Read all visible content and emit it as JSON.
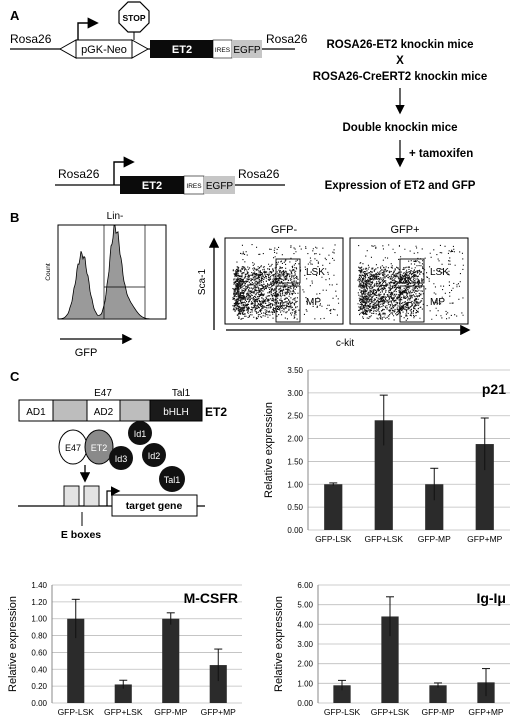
{
  "panelA": {
    "letter": "A",
    "construct1": {
      "rosa_left": "Rosa26",
      "neo": "pGK-Neo",
      "stop": "STOP",
      "et2": "ET2",
      "ires": "IRES",
      "egfp": "EGFP",
      "rosa_right": "Rosa26"
    },
    "construct2": {
      "rosa_left": "Rosa26",
      "et2": "ET2",
      "ires": "IRES",
      "egfp": "EGFP",
      "rosa_right": "Rosa26"
    },
    "flow": {
      "line1": "ROSA26-ET2 knockin mice",
      "cross": "X",
      "line2": "ROSA26-CreERT2 knockin mice",
      "line3": "Double knockin mice",
      "treatment": "+ tamoxifen",
      "line4": "Expression of ET2 and GFP"
    }
  },
  "panelB": {
    "letter": "B",
    "histogram": {
      "title": "Lin-",
      "xlabel": "GFP",
      "ylabel": "Count"
    },
    "scatter_neg": {
      "title": "GFP-"
    },
    "scatter_pos": {
      "title": "GFP+"
    },
    "gates": {
      "lsk": "LSK",
      "mp": "MP"
    },
    "ylabel": "Sca-1",
    "xlabel": "c-kit"
  },
  "panelC": {
    "letter": "C",
    "domains": {
      "ad1": "AD1",
      "ad2": "AD2",
      "bhlh": "bHLH",
      "e47": "E47",
      "tal1": "Tal1",
      "name": "ET2"
    },
    "schematic": {
      "e47": "E47",
      "et2": "ET2",
      "id1": "Id1",
      "id2": "Id2",
      "id3": "Id3",
      "tal1": "Tal1",
      "target": "target gene",
      "eboxes": "E boxes"
    }
  },
  "chart_data": [
    {
      "type": "bar",
      "title": "p21",
      "ylabel": "Relative expression",
      "categories": [
        "GFP-LSK",
        "GFP+LSK",
        "GFP-MP",
        "GFP+MP"
      ],
      "values": [
        1.0,
        2.4,
        1.0,
        1.88
      ],
      "errors": [
        0.03,
        0.55,
        0.35,
        0.57
      ],
      "ylim": [
        0,
        3.5
      ],
      "ticks": [
        "0.00",
        "0.50",
        "1.00",
        "1.50",
        "2.00",
        "2.50",
        "3.00",
        "3.50"
      ],
      "bar_color": "#2b2b2b"
    },
    {
      "type": "bar",
      "title": "M-CSFR",
      "ylabel": "Relative expression",
      "categories": [
        "GFP-LSK",
        "GFP+LSK",
        "GFP-MP",
        "GFP+MP"
      ],
      "values": [
        1.0,
        0.22,
        1.0,
        0.45
      ],
      "errors": [
        0.23,
        0.05,
        0.07,
        0.19
      ],
      "ylim": [
        0,
        1.4
      ],
      "ticks": [
        "0.00",
        "0.20",
        "0.40",
        "0.60",
        "0.80",
        "1.00",
        "1.20",
        "1.40"
      ],
      "bar_color": "#2b2b2b"
    },
    {
      "type": "bar",
      "title": "Ig-Iμ",
      "ylabel": "Relative expression",
      "categories": [
        "GFP-LSK",
        "GFP+LSK",
        "GFP-MP",
        "GFP+MP"
      ],
      "values": [
        0.9,
        4.4,
        0.9,
        1.05
      ],
      "errors": [
        0.25,
        1.0,
        0.12,
        0.7
      ],
      "ylim": [
        0,
        6
      ],
      "ticks": [
        "0.00",
        "1.00",
        "2.00",
        "3.00",
        "4.00",
        "5.00",
        "6.00"
      ],
      "bar_color": "#2b2b2b"
    }
  ]
}
